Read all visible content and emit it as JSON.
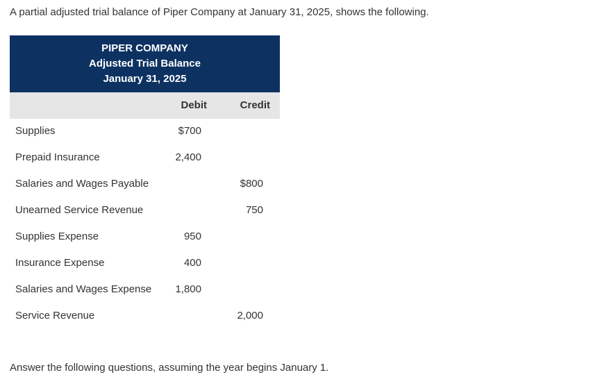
{
  "intro_text": "A partial adjusted trial balance of Piper Company at January 31, 2025, shows the following.",
  "table": {
    "company": "PIPER COMPANY",
    "statement": "Adjusted Trial Balance",
    "date": "January 31, 2025",
    "debit_header": "Debit",
    "credit_header": "Credit",
    "rows": [
      {
        "account": "Supplies",
        "debit": "$700",
        "credit": ""
      },
      {
        "account": "Prepaid Insurance",
        "debit": "2,400",
        "credit": ""
      },
      {
        "account": "Salaries and Wages Payable",
        "debit": "",
        "credit": "$800"
      },
      {
        "account": "Unearned Service Revenue",
        "debit": "",
        "credit": "750"
      },
      {
        "account": "Supplies Expense",
        "debit": "950",
        "credit": ""
      },
      {
        "account": "Insurance Expense",
        "debit": "400",
        "credit": ""
      },
      {
        "account": "Salaries and Wages Expense",
        "debit": "1,800",
        "credit": ""
      },
      {
        "account": "Service Revenue",
        "debit": "",
        "credit": "2,000"
      }
    ]
  },
  "outro_text": "Answer the following questions, assuming the year begins January 1."
}
